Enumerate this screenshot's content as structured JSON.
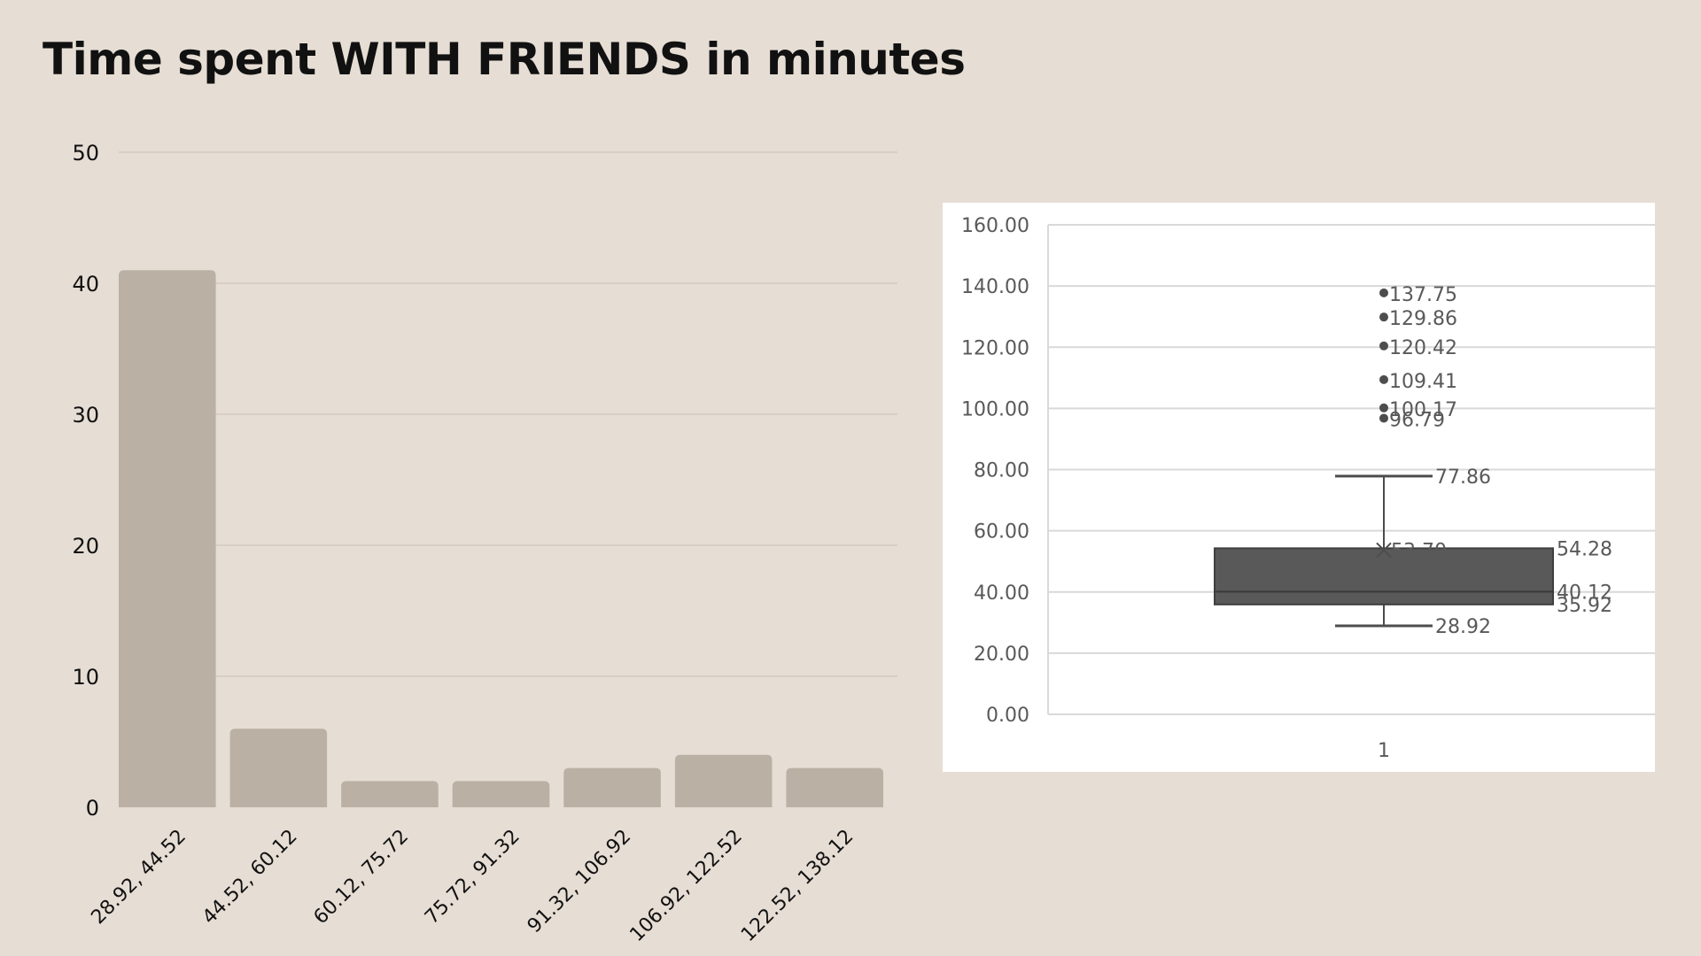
{
  "page": {
    "title": "Time spent WITH FRIENDS in minutes"
  },
  "chart_data": [
    {
      "type": "bar",
      "title": "",
      "xlabel": "",
      "ylabel": "",
      "categories": [
        "28.92, 44.52",
        "44.52, 60.12",
        "60.12, 75.72",
        "75.72, 91.32",
        "91.32, 106.92",
        "106.92, 122.52",
        "122.52, 138.12"
      ],
      "values": [
        41,
        6,
        2,
        2,
        3,
        4,
        3
      ],
      "ylim": [
        0,
        50
      ],
      "yticks": [
        "0",
        "10",
        "20",
        "30",
        "40",
        "50"
      ],
      "grid": true,
      "bar_color": "#bbb0a4",
      "grid_color": "#c9bfb4"
    },
    {
      "type": "box",
      "title": "",
      "categories": [
        "1"
      ],
      "ylim": [
        0,
        160
      ],
      "yticks": [
        "0.00",
        "20.00",
        "40.00",
        "60.00",
        "80.00",
        "100.00",
        "120.00",
        "140.00",
        "160.00"
      ],
      "grid": true,
      "box": {
        "min": 28.92,
        "min_label": "28.92",
        "q1": 35.92,
        "q1_label": "35.92",
        "median": 40.12,
        "median_label": "40.12",
        "mean": 53.7,
        "mean_label": "53.70",
        "q3": 54.28,
        "q3_label": "54.28",
        "max": 77.86,
        "max_label": "77.86"
      },
      "outliers": [
        {
          "value": 137.75,
          "label": "137.75"
        },
        {
          "value": 129.86,
          "label": "129.86"
        },
        {
          "value": 120.42,
          "label": "120.42"
        },
        {
          "value": 109.41,
          "label": "109.41"
        },
        {
          "value": 100.17,
          "label": "100.17"
        },
        {
          "value": 96.79,
          "label": "96.79"
        }
      ],
      "box_color": "#595959",
      "line_color": "#4d4d4d",
      "label_color": "#595959"
    }
  ]
}
